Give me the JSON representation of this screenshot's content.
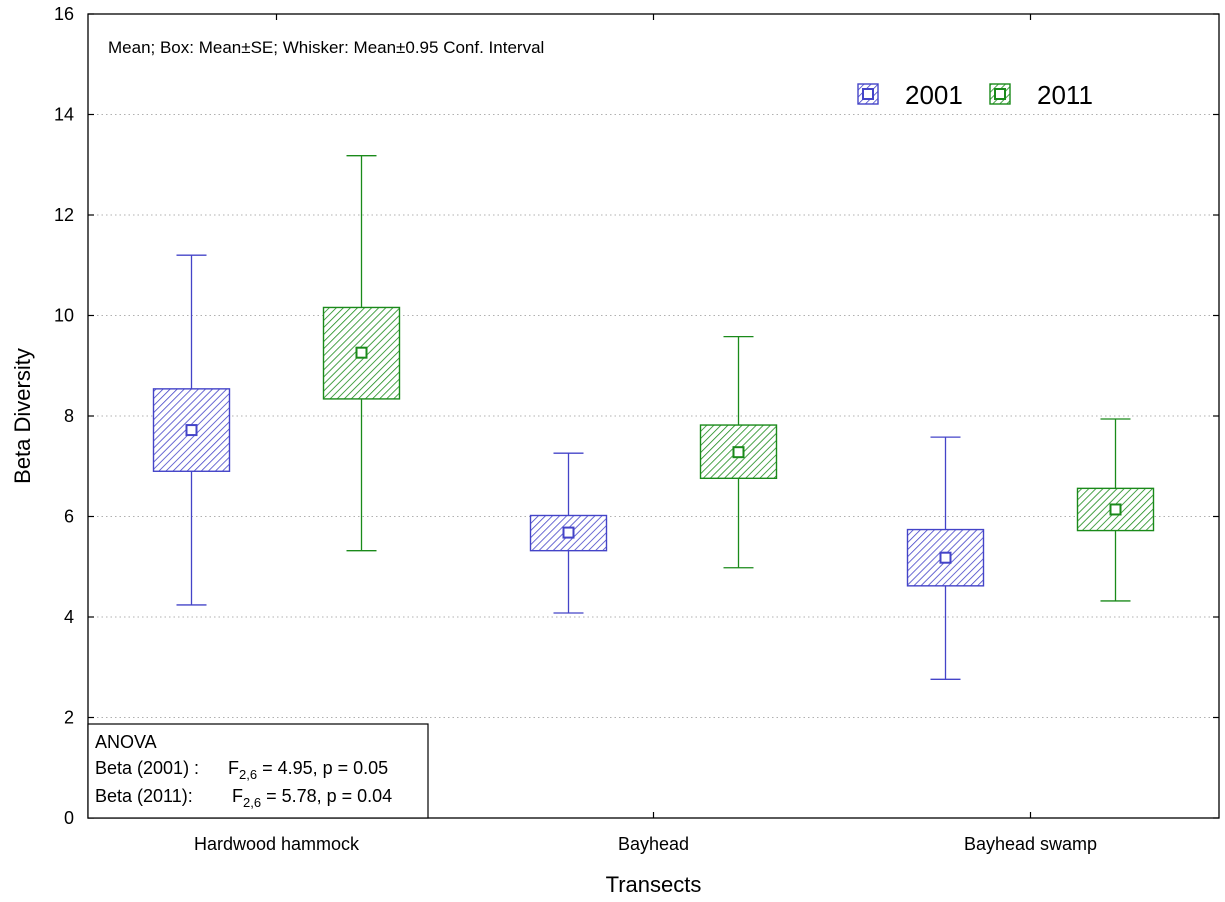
{
  "chart_data": {
    "type": "boxplot",
    "note": "Mean; Box: Mean±SE; Whisker: Mean±0.95 Conf. Interval",
    "xlabel": "Transects",
    "ylabel": "Beta Diversity",
    "ylim": [
      0,
      16
    ],
    "yticks": [
      0,
      2,
      4,
      6,
      8,
      10,
      12,
      14,
      16
    ],
    "grid": "horizontal dotted",
    "legend_position": "top-right",
    "categories": [
      "Hardwood hammock",
      "Bayhead",
      "Bayhead swamp"
    ],
    "series": [
      {
        "name": "2001",
        "color": "#4444c8",
        "mean": [
          7.72,
          5.68,
          5.18
        ],
        "se_low": [
          6.9,
          5.32,
          4.62
        ],
        "se_high": [
          8.54,
          6.02,
          5.74
        ],
        "ci_low": [
          4.24,
          4.08,
          2.76
        ],
        "ci_high": [
          11.2,
          7.26,
          7.58
        ]
      },
      {
        "name": "2011",
        "color": "#1a8a1a",
        "mean": [
          9.26,
          7.28,
          6.14
        ],
        "se_low": [
          8.34,
          6.76,
          5.72
        ],
        "se_high": [
          10.16,
          7.82,
          6.56
        ],
        "ci_low": [
          5.32,
          4.98,
          4.32
        ],
        "ci_high": [
          13.18,
          9.58,
          7.94
        ]
      }
    ],
    "anova": {
      "title": "ANOVA",
      "rows": [
        {
          "label": "Beta (2001) :",
          "stat": "F",
          "sub": "2,6",
          "rest": " = 4.95, p = 0.05"
        },
        {
          "label": "Beta (2011):",
          "stat": "F",
          "sub": "2,6",
          "rest": " = 5.78, p = 0.04"
        }
      ]
    }
  }
}
